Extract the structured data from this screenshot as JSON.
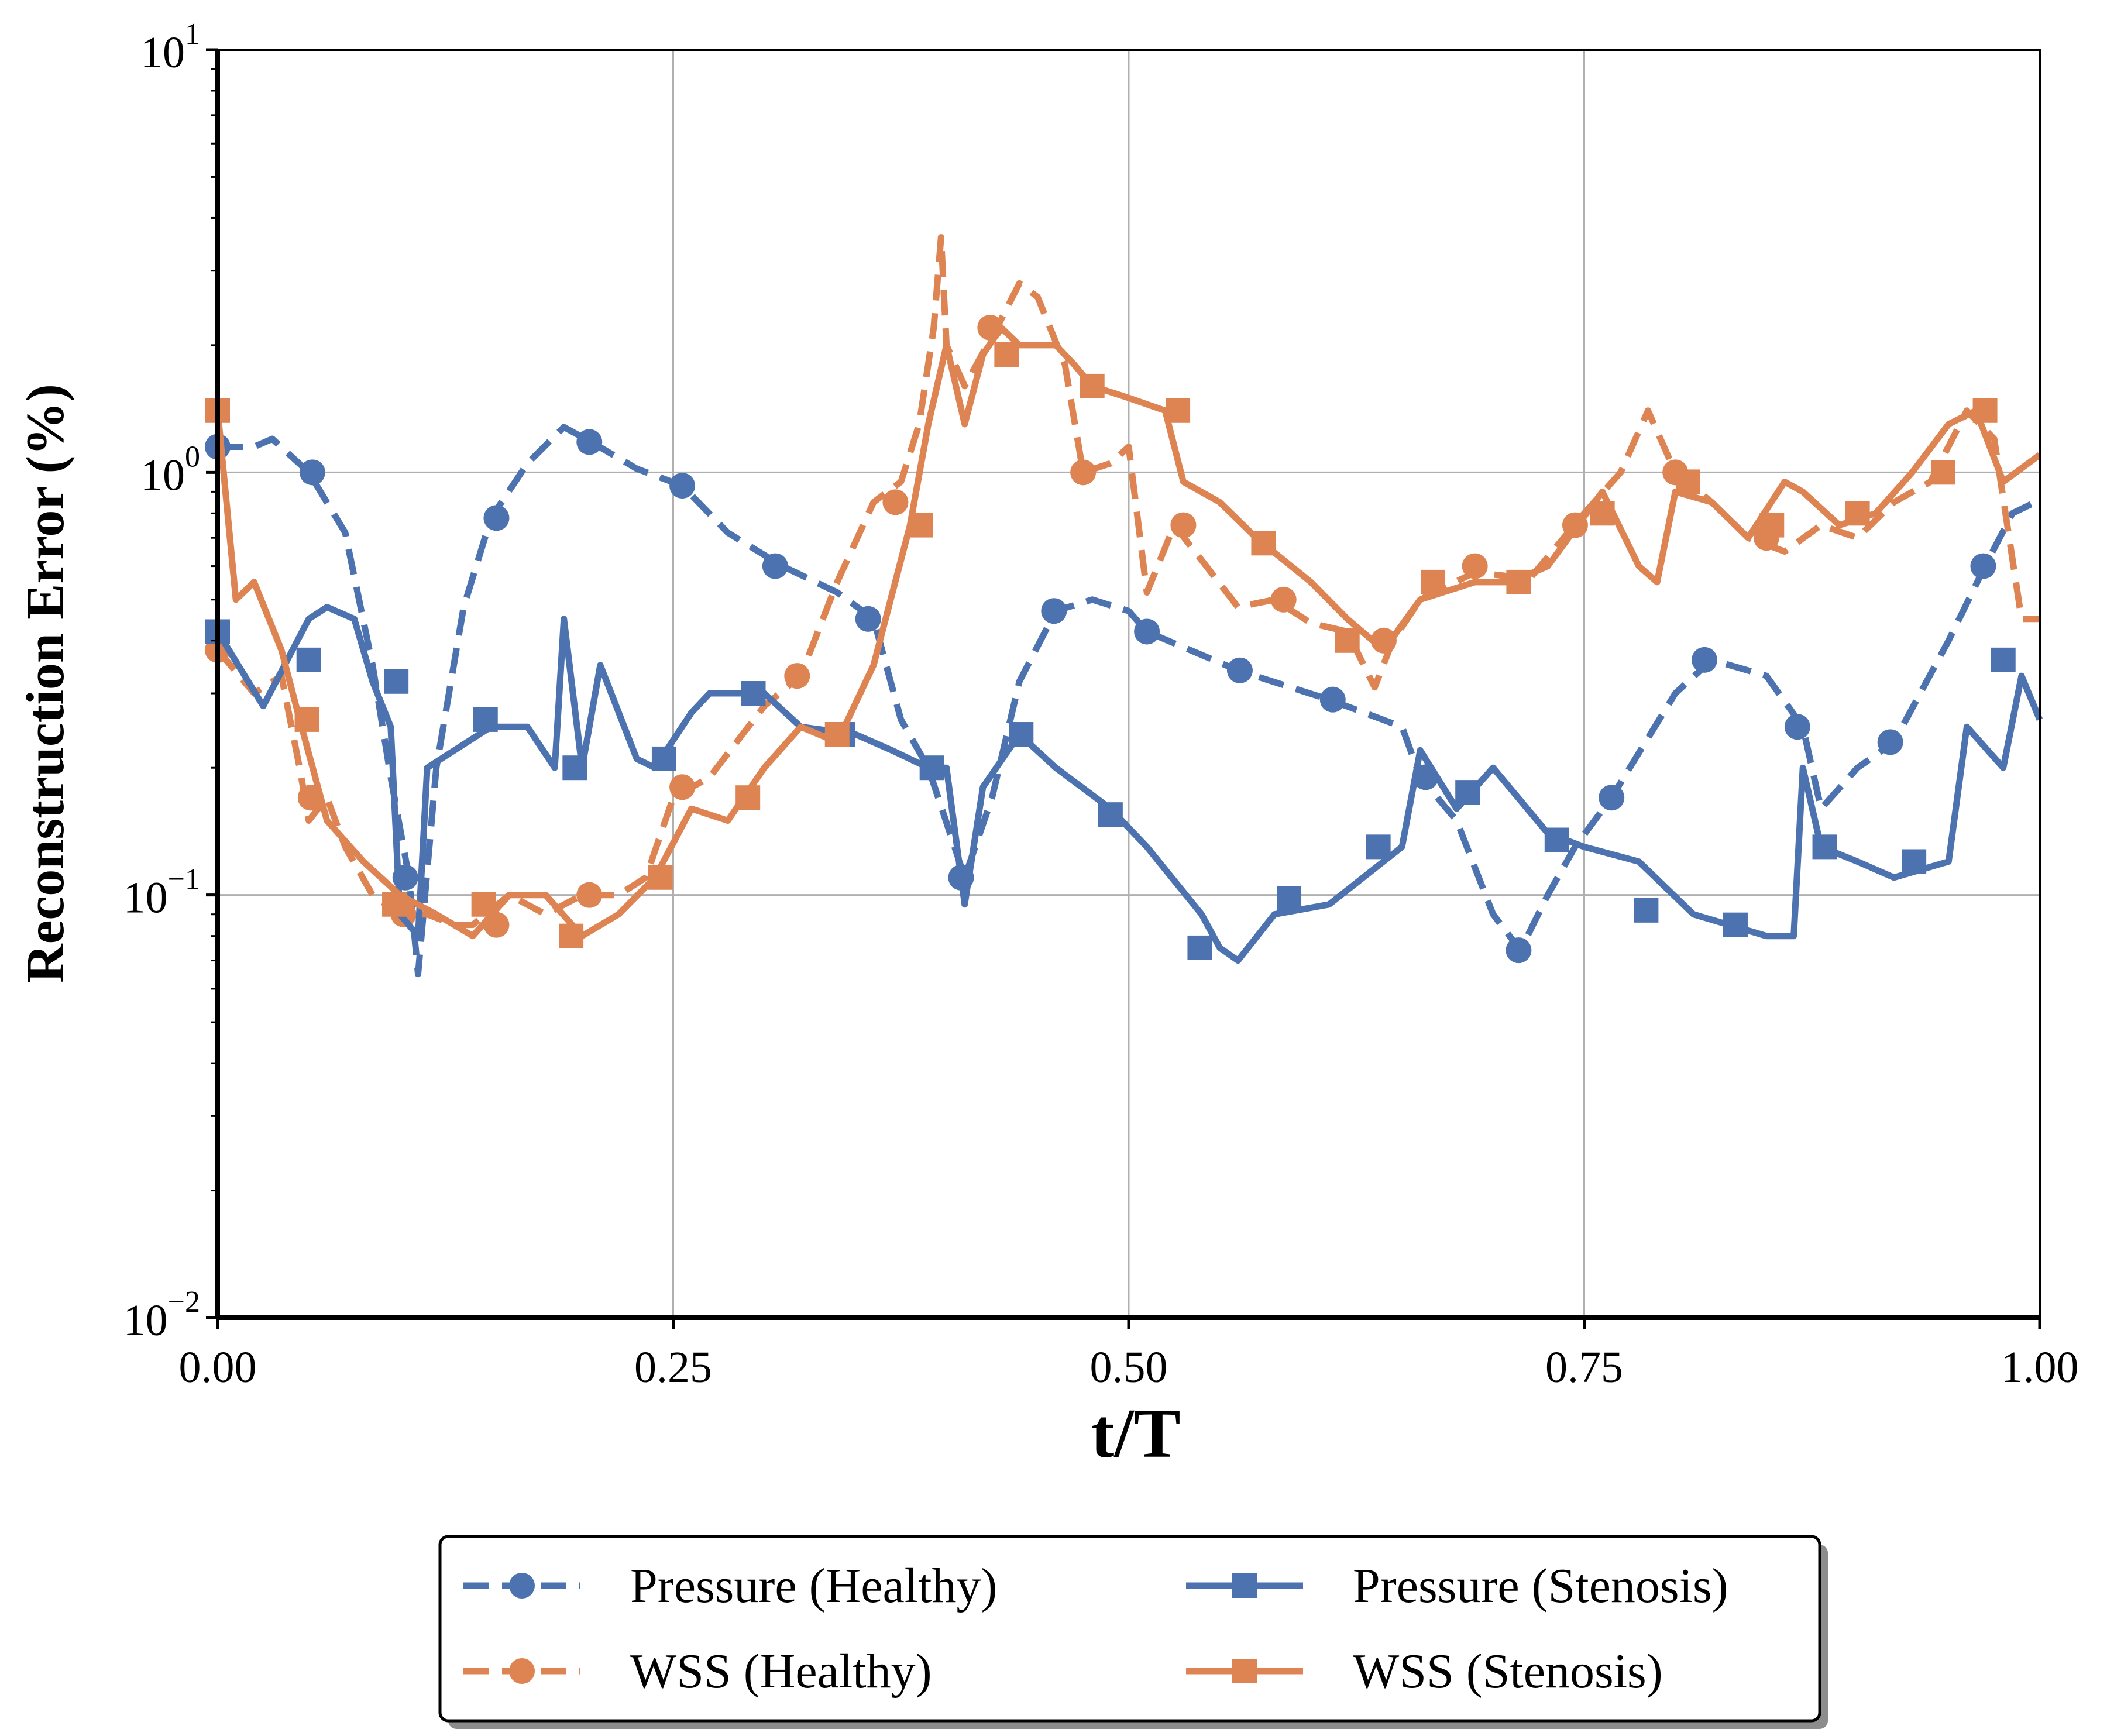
{
  "chart_data": {
    "type": "line",
    "title": "",
    "xlabel": "t/T",
    "ylabel": "Reconstruction Error (%)",
    "xlim": [
      0,
      1
    ],
    "ylim": [
      0.01,
      10
    ],
    "yscale": "log",
    "grid": true,
    "legend_position": "below",
    "x_ticks": [
      {
        "value": 0,
        "label": "0.00"
      },
      {
        "value": 0.25,
        "label": "0.25"
      },
      {
        "value": 0.5,
        "label": "0.50"
      },
      {
        "value": 0.75,
        "label": "0.75"
      },
      {
        "value": 1,
        "label": "1.00"
      }
    ],
    "y_ticks": [
      {
        "value": 0.01,
        "base": "10",
        "exp": "−2"
      },
      {
        "value": 0.1,
        "base": "10",
        "exp": "−1"
      },
      {
        "value": 1,
        "base": "10",
        "exp": "0"
      },
      {
        "value": 10,
        "base": "10",
        "exp": "1"
      }
    ],
    "series": [
      {
        "name": "Pressure (Healthy)",
        "color": "#4c72b0",
        "dash": "dashed",
        "marker": "circle",
        "x": [
          0.0,
          0.02,
          0.03,
          0.05,
          0.07,
          0.085,
          0.095,
          0.105,
          0.11,
          0.12,
          0.135,
          0.15,
          0.17,
          0.19,
          0.205,
          0.23,
          0.255,
          0.28,
          0.31,
          0.34,
          0.36,
          0.375,
          0.39,
          0.41,
          0.425,
          0.44,
          0.46,
          0.48,
          0.5,
          0.51,
          0.56,
          0.61,
          0.65,
          0.66,
          0.68,
          0.7,
          0.715,
          0.73,
          0.745,
          0.765,
          0.8,
          0.82,
          0.85,
          0.87,
          0.88,
          0.9,
          0.92,
          0.95,
          0.97,
          0.985,
          1.0
        ],
        "y": [
          1.15,
          1.15,
          1.2,
          1.0,
          0.72,
          0.35,
          0.19,
          0.11,
          0.065,
          0.2,
          0.48,
          0.78,
          1.05,
          1.28,
          1.18,
          1.02,
          0.93,
          0.72,
          0.6,
          0.52,
          0.45,
          0.26,
          0.2,
          0.11,
          0.17,
          0.32,
          0.47,
          0.5,
          0.47,
          0.42,
          0.34,
          0.29,
          0.25,
          0.19,
          0.15,
          0.09,
          0.074,
          0.1,
          0.13,
          0.17,
          0.3,
          0.36,
          0.33,
          0.25,
          0.16,
          0.2,
          0.23,
          0.4,
          0.6,
          0.8,
          0.86
        ],
        "markers_x": [
          0.0,
          0.052,
          0.103,
          0.153,
          0.204,
          0.255,
          0.306,
          0.357,
          0.408,
          0.459,
          0.51,
          0.561,
          0.612,
          0.663,
          0.714,
          0.765,
          0.816,
          0.867,
          0.918,
          0.969
        ],
        "markers_y": [
          1.15,
          1.0,
          0.11,
          0.78,
          1.18,
          0.93,
          0.6,
          0.45,
          0.11,
          0.47,
          0.42,
          0.34,
          0.29,
          0.19,
          0.074,
          0.17,
          0.36,
          0.25,
          0.23,
          0.6
        ]
      },
      {
        "name": "WSS (Healthy)",
        "color": "#dd8452",
        "dash": "dashed",
        "marker": "circle",
        "x": [
          0.0,
          0.02,
          0.035,
          0.045,
          0.05,
          0.06,
          0.07,
          0.085,
          0.1,
          0.115,
          0.13,
          0.14,
          0.16,
          0.18,
          0.2,
          0.22,
          0.235,
          0.25,
          0.27,
          0.3,
          0.32,
          0.34,
          0.36,
          0.375,
          0.385,
          0.393,
          0.397,
          0.4,
          0.41,
          0.43,
          0.44,
          0.45,
          0.465,
          0.475,
          0.49,
          0.5,
          0.51,
          0.525,
          0.54,
          0.56,
          0.58,
          0.6,
          0.62,
          0.635,
          0.645,
          0.66,
          0.69,
          0.72,
          0.75,
          0.77,
          0.785,
          0.8,
          0.82,
          0.84,
          0.86,
          0.88,
          0.9,
          0.92,
          0.94,
          0.96,
          0.975,
          0.99,
          1.0
        ],
        "y": [
          0.38,
          0.3,
          0.33,
          0.2,
          0.15,
          0.17,
          0.13,
          0.1,
          0.09,
          0.09,
          0.085,
          0.085,
          0.1,
          0.09,
          0.1,
          0.1,
          0.11,
          0.17,
          0.19,
          0.28,
          0.33,
          0.55,
          0.85,
          0.95,
          1.3,
          2.2,
          3.6,
          2.0,
          1.6,
          2.3,
          2.8,
          2.6,
          1.8,
          1.0,
          1.05,
          1.15,
          0.52,
          0.75,
          0.62,
          0.48,
          0.5,
          0.44,
          0.42,
          0.31,
          0.4,
          0.5,
          0.58,
          0.56,
          0.8,
          1.0,
          1.4,
          1.0,
          0.85,
          0.7,
          0.65,
          0.75,
          0.7,
          0.85,
          0.95,
          1.4,
          1.2,
          0.45,
          0.45
        ],
        "markers_x": [
          0.0,
          0.051,
          0.102,
          0.153,
          0.204,
          0.255,
          0.318,
          0.372,
          0.424,
          0.475,
          0.53,
          0.585,
          0.64,
          0.69,
          0.745,
          0.8,
          0.85
        ],
        "markers_y": [
          0.38,
          0.17,
          0.09,
          0.085,
          0.1,
          0.18,
          0.33,
          0.85,
          2.2,
          1.0,
          0.75,
          0.5,
          0.4,
          0.6,
          0.75,
          1.0,
          0.7
        ]
      },
      {
        "name": "Pressure (Stenosis)",
        "color": "#4c72b0",
        "dash": "solid",
        "marker": "square",
        "x": [
          0.0,
          0.025,
          0.05,
          0.06,
          0.075,
          0.085,
          0.095,
          0.1,
          0.11,
          0.115,
          0.13,
          0.15,
          0.17,
          0.185,
          0.19,
          0.2,
          0.21,
          0.23,
          0.24,
          0.26,
          0.27,
          0.3,
          0.32,
          0.35,
          0.37,
          0.39,
          0.4,
          0.41,
          0.42,
          0.44,
          0.46,
          0.49,
          0.51,
          0.54,
          0.55,
          0.56,
          0.58,
          0.61,
          0.65,
          0.66,
          0.68,
          0.7,
          0.73,
          0.75,
          0.78,
          0.81,
          0.85,
          0.865,
          0.87,
          0.88,
          0.9,
          0.92,
          0.95,
          0.96,
          0.98,
          0.99,
          1.0
        ],
        "y": [
          0.42,
          0.28,
          0.45,
          0.48,
          0.45,
          0.32,
          0.25,
          0.09,
          0.08,
          0.2,
          0.22,
          0.25,
          0.25,
          0.2,
          0.45,
          0.2,
          0.35,
          0.21,
          0.2,
          0.27,
          0.3,
          0.3,
          0.25,
          0.24,
          0.22,
          0.2,
          0.2,
          0.095,
          0.18,
          0.24,
          0.2,
          0.16,
          0.13,
          0.09,
          0.075,
          0.07,
          0.09,
          0.095,
          0.13,
          0.22,
          0.16,
          0.2,
          0.14,
          0.13,
          0.12,
          0.09,
          0.08,
          0.08,
          0.2,
          0.13,
          0.12,
          0.11,
          0.12,
          0.25,
          0.2,
          0.33,
          0.26
        ],
        "markers_x": [
          0.0,
          0.05,
          0.098,
          0.147,
          0.196,
          0.245,
          0.294,
          0.343,
          0.392,
          0.441,
          0.49,
          0.539,
          0.588,
          0.637,
          0.686,
          0.735,
          0.784,
          0.833,
          0.882,
          0.931,
          0.98
        ],
        "markers_y": [
          0.42,
          0.36,
          0.32,
          0.26,
          0.2,
          0.21,
          0.3,
          0.24,
          0.2,
          0.24,
          0.155,
          0.075,
          0.098,
          0.13,
          0.175,
          0.135,
          0.092,
          0.085,
          0.13,
          0.12,
          0.36
        ]
      },
      {
        "name": "WSS (Stenosis)",
        "color": "#dd8452",
        "dash": "solid",
        "marker": "square",
        "x": [
          0.0,
          0.01,
          0.02,
          0.035,
          0.045,
          0.06,
          0.08,
          0.1,
          0.12,
          0.14,
          0.16,
          0.18,
          0.2,
          0.22,
          0.24,
          0.26,
          0.28,
          0.3,
          0.32,
          0.34,
          0.36,
          0.38,
          0.39,
          0.4,
          0.41,
          0.42,
          0.43,
          0.44,
          0.46,
          0.47,
          0.48,
          0.5,
          0.52,
          0.53,
          0.55,
          0.57,
          0.6,
          0.62,
          0.64,
          0.66,
          0.69,
          0.71,
          0.73,
          0.76,
          0.78,
          0.79,
          0.8,
          0.82,
          0.84,
          0.86,
          0.87,
          0.89,
          0.91,
          0.93,
          0.95,
          0.965,
          0.98,
          1.0
        ],
        "y": [
          1.4,
          0.5,
          0.55,
          0.38,
          0.26,
          0.15,
          0.12,
          0.1,
          0.09,
          0.08,
          0.1,
          0.1,
          0.08,
          0.09,
          0.11,
          0.16,
          0.15,
          0.2,
          0.25,
          0.23,
          0.35,
          0.75,
          1.3,
          2.0,
          1.3,
          1.9,
          2.2,
          2.0,
          2.0,
          1.8,
          1.6,
          1.5,
          1.4,
          0.95,
          0.85,
          0.7,
          0.55,
          0.45,
          0.38,
          0.5,
          0.55,
          0.55,
          0.6,
          0.9,
          0.6,
          0.55,
          0.9,
          0.85,
          0.7,
          0.95,
          0.9,
          0.75,
          0.8,
          1.0,
          1.3,
          1.4,
          0.95,
          1.1
        ],
        "markers_x": [
          0.0,
          0.049,
          0.097,
          0.146,
          0.194,
          0.243,
          0.291,
          0.34,
          0.386,
          0.433,
          0.48,
          0.527,
          0.574,
          0.62,
          0.667,
          0.714,
          0.76,
          0.807,
          0.853,
          0.9,
          0.947,
          0.97
        ],
        "markers_y": [
          1.4,
          0.26,
          0.095,
          0.095,
          0.08,
          0.11,
          0.17,
          0.24,
          0.75,
          1.9,
          1.6,
          1.4,
          0.68,
          0.4,
          0.55,
          0.55,
          0.8,
          0.95,
          0.75,
          0.8,
          1.0,
          1.4
        ]
      }
    ]
  }
}
